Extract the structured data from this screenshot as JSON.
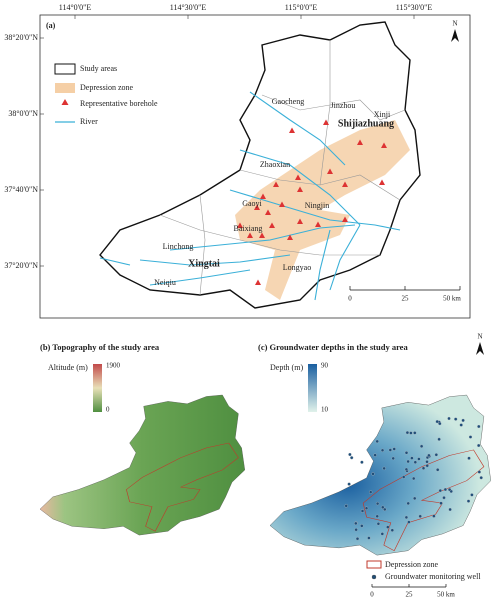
{
  "panel_a": {
    "label": "(a)",
    "longitude_labels": [
      "114°0'0\"E",
      "114°30'0\"E",
      "115°0'0\"E",
      "115°30'0\"E"
    ],
    "latitude_labels": [
      "38°20'0\"N",
      "38°0'0\"N",
      "37°40'0\"N",
      "37°20'0\"N"
    ],
    "legend": [
      "Study areas",
      "Depression zone",
      "Representative borehole",
      "River"
    ],
    "places": [
      "Gaocheng",
      "Jinzhou",
      "Xinji",
      "Zhaoxian",
      "Gaoyi",
      "Ningjin",
      "Baixiang",
      "Linchong",
      "Longyao",
      "Neiqiu"
    ],
    "cities": [
      "Shijiazhuang",
      "Xingtai"
    ],
    "scale_labels": [
      "0",
      "25",
      "50 km"
    ],
    "north": "N"
  },
  "panel_b": {
    "title": "(b) Topography of the study area",
    "legend_title": "Altitude (m)",
    "legend_max": "1900",
    "legend_min": "0"
  },
  "panel_c": {
    "title": "(c) Groundwater depths in the study area",
    "legend_title": "Depth (m)",
    "legend_max": "90",
    "legend_min": "10",
    "legend": [
      "Depression zone",
      "Groundwater monitoring well"
    ],
    "scale_labels": [
      "0",
      "25",
      "50 km"
    ],
    "north": "N"
  }
}
